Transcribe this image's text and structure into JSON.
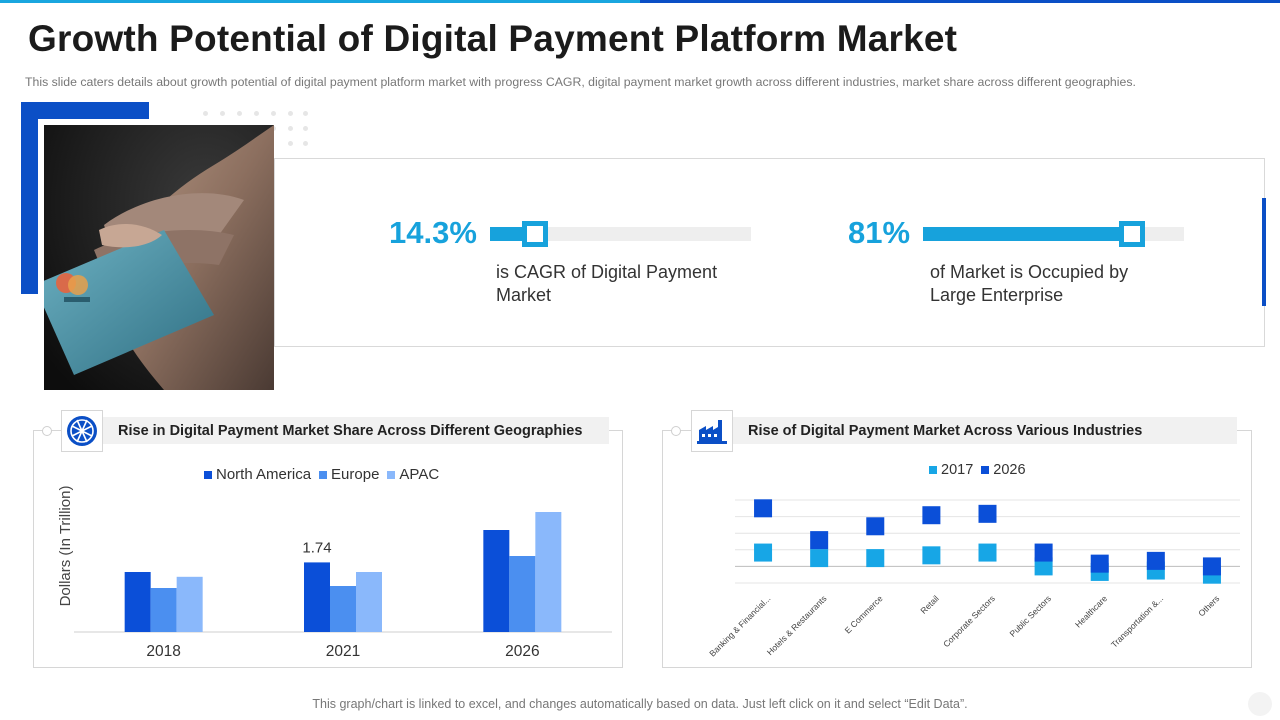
{
  "slide": {
    "title": "Growth Potential of Digital Payment Platform Market",
    "subtitle": "This slide caters details about growth  potential of digital payment platform market with progress CAGR, digital payment market growth across different industries, market share across different geographies."
  },
  "photo": {
    "icon": "credit-card-hand-photo"
  },
  "stats": [
    {
      "value": "14.3%",
      "fraction": 0.143,
      "label": "is CAGR of Digital Payment Market"
    },
    {
      "value": "81%",
      "fraction": 0.81,
      "label": "of Market is Occupied by Large Enterprise"
    }
  ],
  "colors": {
    "accent_light": "#17a2dc",
    "accent_dark": "#0b4fc6",
    "north_america": "#0b4fd8",
    "europe": "#4b8ff0",
    "apac": "#8ab8fb",
    "y2017": "#17a6e6",
    "y2026": "#0b4fd8"
  },
  "geo_panel": {
    "title": "Rise in Digital Payment Market Share Across Different Geographies",
    "icon": "globe-icon"
  },
  "industry_panel": {
    "title": "Rise of Digital Payment Market Across Various Industries",
    "icon": "factory-icon"
  },
  "chart_data": [
    {
      "type": "bar",
      "title": "Rise in Digital Payment Market Share Across Different Geographies",
      "ylabel": "Dollars (In Trillion)",
      "categories": [
        "2018",
        "2021",
        "2026"
      ],
      "series": [
        {
          "name": "North America",
          "values": [
            1.5,
            1.74,
            2.55
          ]
        },
        {
          "name": "Europe",
          "values": [
            1.1,
            1.15,
            1.9
          ]
        },
        {
          "name": "APAC",
          "values": [
            1.38,
            1.5,
            3.0
          ]
        }
      ],
      "data_labels": [
        {
          "series": "North America",
          "category": "2021",
          "text": "1.74"
        }
      ],
      "ylim": [
        0,
        3.5
      ],
      "legend": "top"
    },
    {
      "type": "scatter",
      "title": "Rise of Digital Payment Market Across Various Industries",
      "categories": [
        "Banking & Financial...",
        "Hotels & Restaurants",
        "E Commerce",
        "Retail",
        "Corporate Sectors",
        "Public Sectors",
        "Healthcare",
        "Transportation &...",
        "Others"
      ],
      "series": [
        {
          "name": "2017",
          "values": [
            1.2,
            0.8,
            0.8,
            1.0,
            1.2,
            0.2,
            -0.2,
            -0.1,
            -0.4
          ]
        },
        {
          "name": "2026",
          "values": [
            4.4,
            2.1,
            3.1,
            3.9,
            4.0,
            1.2,
            0.4,
            0.6,
            0.2
          ]
        }
      ],
      "ylim": [
        -1,
        5
      ],
      "grid": true,
      "legend": "top"
    }
  ],
  "footer": {
    "note": "This graph/chart is linked to excel, and changes automatically based on data. Just left click on it and select “Edit Data”."
  }
}
